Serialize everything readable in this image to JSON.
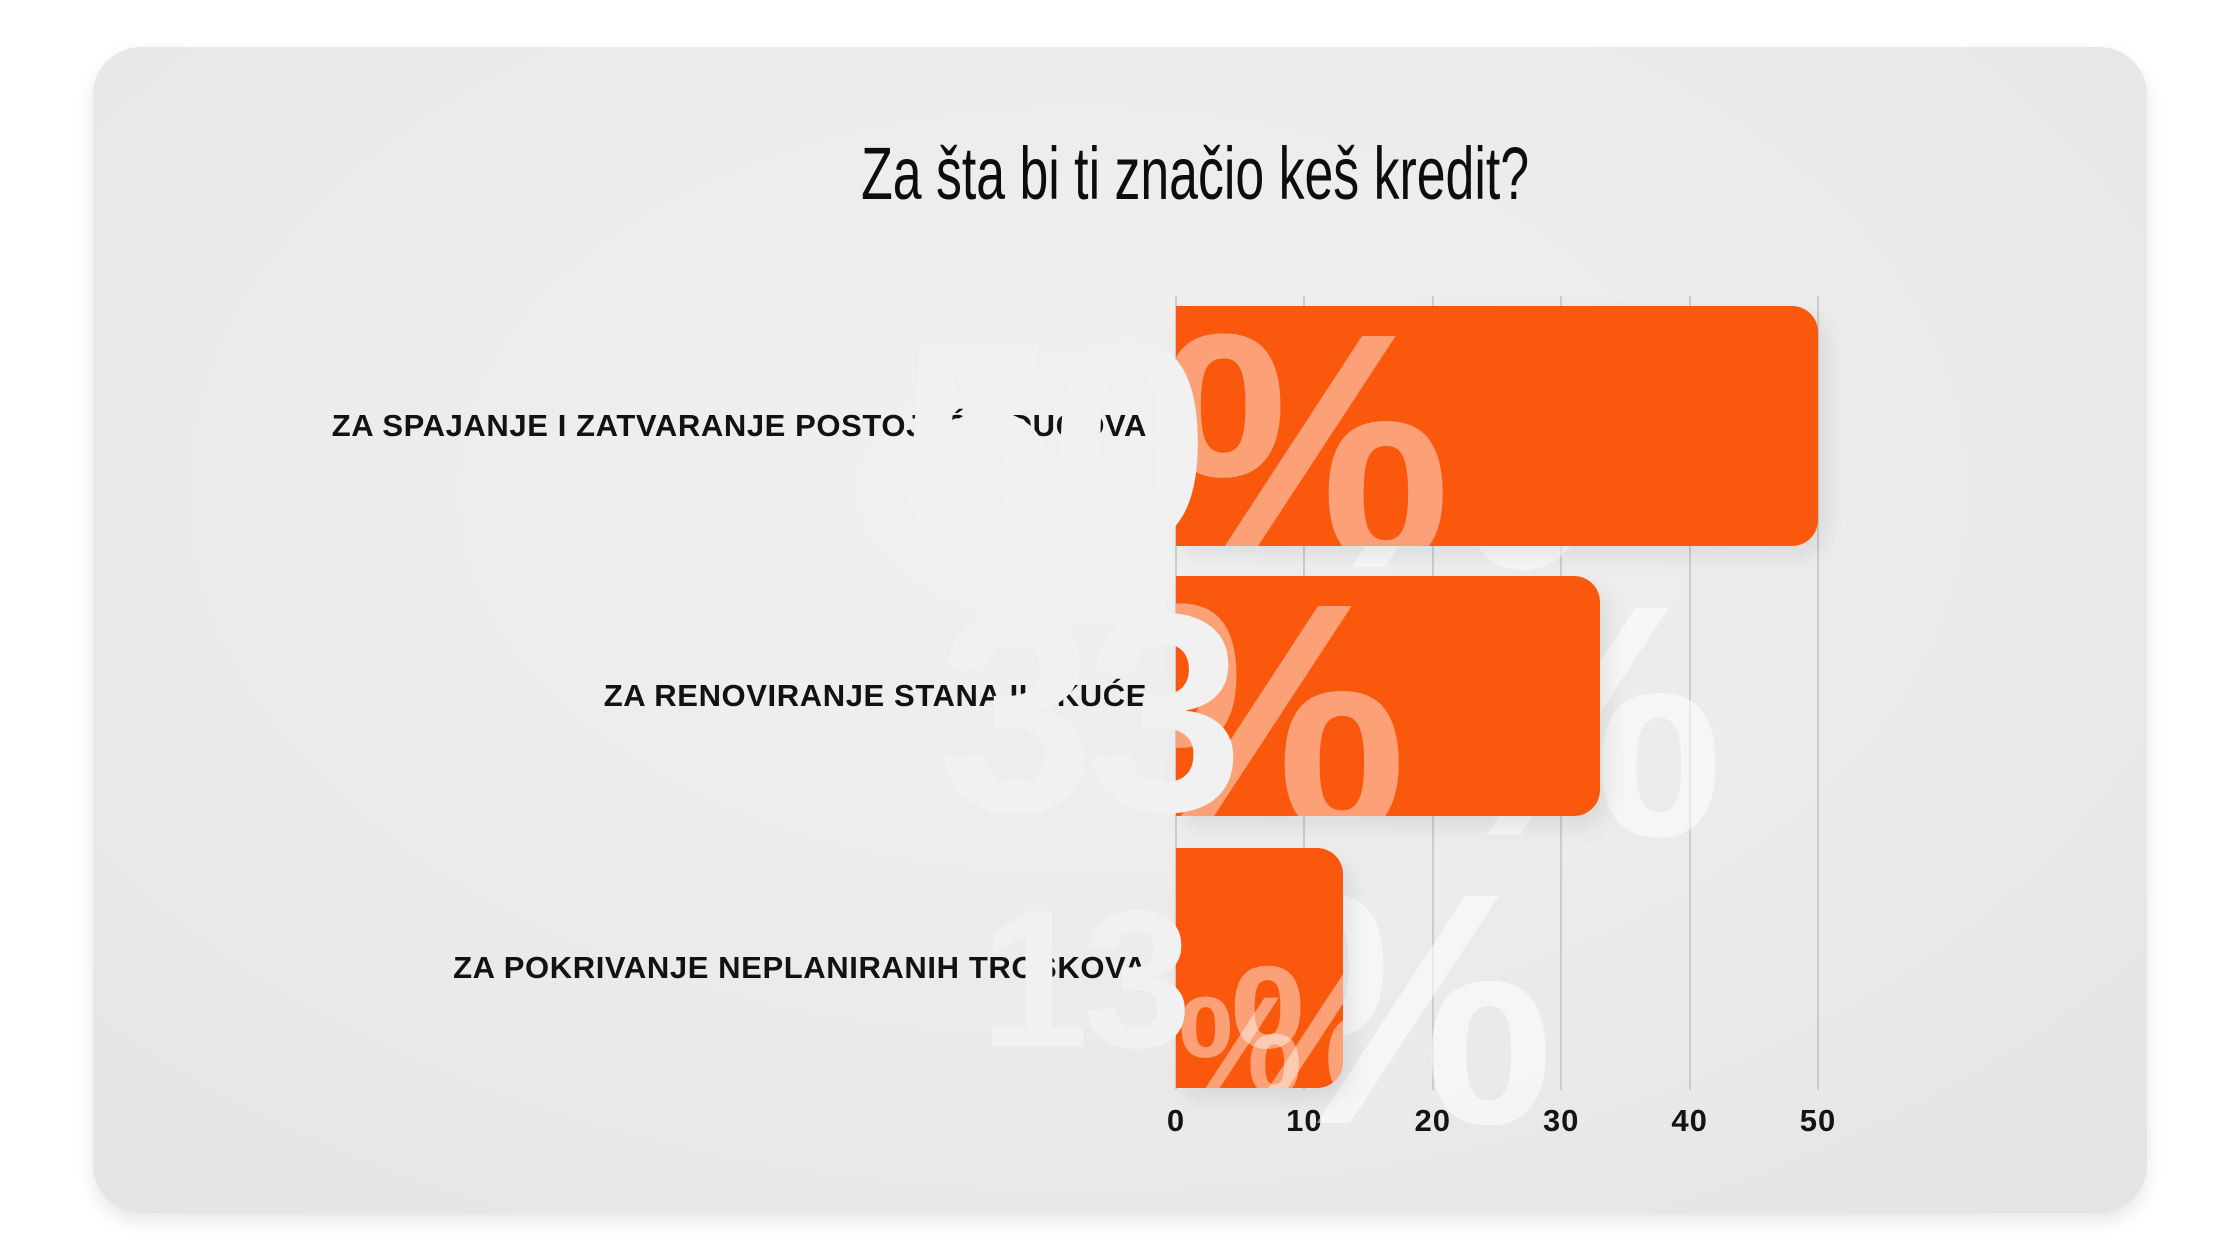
{
  "title": "Za šta bi ti značio keš kredit?",
  "chart_data": {
    "type": "bar",
    "orientation": "horizontal",
    "title": "Za šta bi ti značio keš kredit?",
    "categories": [
      "ZA SPAJANJE I ZATVARANJE POSTOJEĆIH DUGOVA",
      "ZA RENOVIRANJE STANA ILI KUĆE",
      "ZA POKRIVANJE NEPLANIRANIH TROŠKOVA"
    ],
    "values": [
      50,
      33,
      13
    ],
    "unit_symbol": "%",
    "x_ticks": [
      0,
      10,
      20,
      30,
      40,
      50
    ],
    "xlim": [
      0,
      55
    ],
    "grid": true,
    "legend": "none",
    "colors": {
      "bar": "#FA580D",
      "bar_watermark": "rgba(255,255,255,0.44)",
      "value_text": "#F1F1F1",
      "label_text": "#121212",
      "gridline": "#CCCCCC",
      "card_background": "#E9E9E9",
      "page_background": "#FFFFFF"
    }
  }
}
